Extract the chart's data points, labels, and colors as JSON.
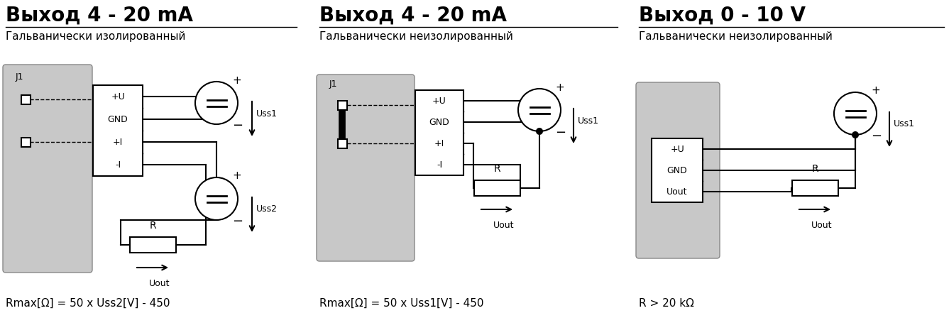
{
  "title1": "Выход 4 - 20 mA",
  "subtitle1": "Гальванически изолированный",
  "formula1": "Rmax[Ω] = 50 x Uss2[V] - 450",
  "title2": "Выход 4 - 20 mA",
  "subtitle2": "Гальванически неизолированный",
  "formula2": "Rmax[Ω] = 50 x Uss1[V] - 450",
  "title3": "Выход 0 - 10 V",
  "subtitle3": "Гальванически неизолированный",
  "formula3": "R > 20 kΩ",
  "bg_color": "#ffffff",
  "gray_color": "#c8c8c8",
  "line_color": "#000000",
  "title_fontsize": 20,
  "subtitle_fontsize": 11,
  "formula_fontsize": 11
}
